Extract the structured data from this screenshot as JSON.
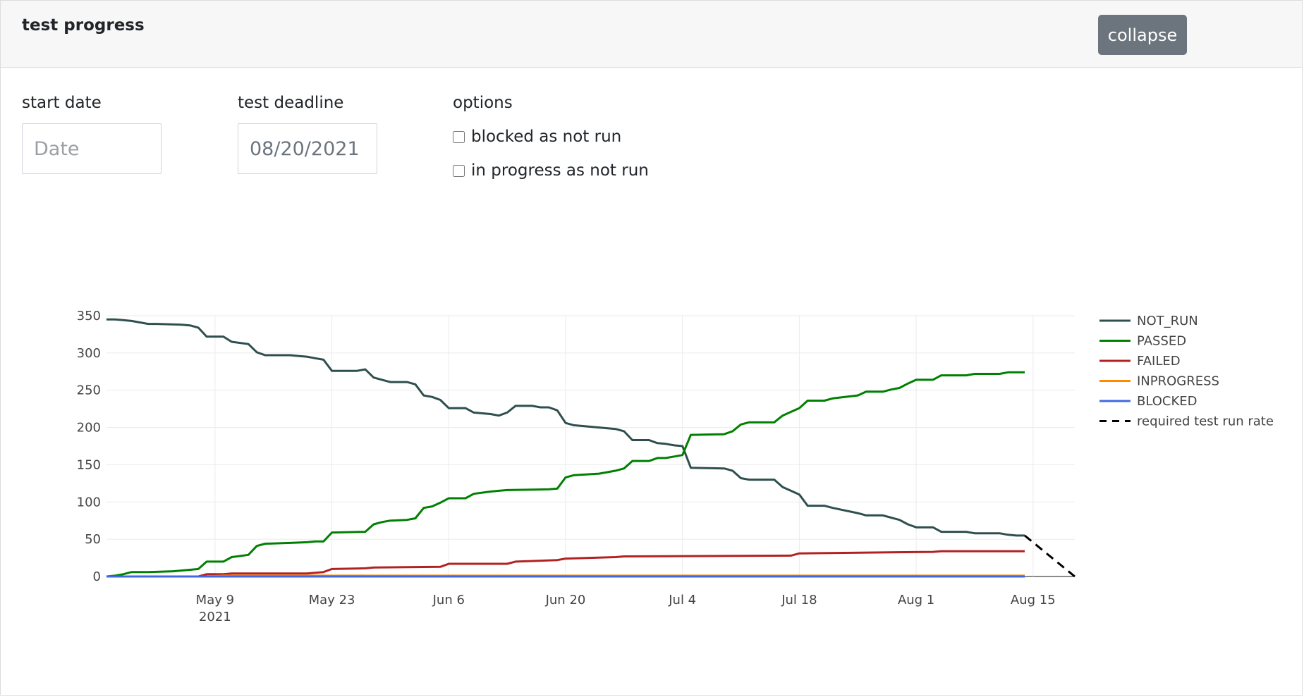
{
  "header": {
    "title": "test progress",
    "collapse_label": "collapse"
  },
  "form": {
    "start_date": {
      "label": "start date",
      "placeholder": "Date",
      "value": ""
    },
    "deadline": {
      "label": "test deadline",
      "value": "08/20/2021"
    },
    "options": {
      "label": "options",
      "items": [
        {
          "label": "blocked as not run",
          "checked": false
        },
        {
          "label": "in progress as not run",
          "checked": false
        }
      ]
    }
  },
  "chart_data": {
    "type": "line",
    "x_axis": {
      "type": "date",
      "range": [
        "2021-04-26",
        "2021-08-20"
      ],
      "ticks": [
        "May 9",
        "May 23",
        "Jun 6",
        "Jun 20",
        "Jul 4",
        "Jul 18",
        "Aug 1",
        "Aug 15"
      ],
      "tick_year": "2021"
    },
    "y_axis": {
      "range": [
        0,
        350
      ],
      "ticks": [
        "0",
        "50",
        "100",
        "150",
        "200",
        "250",
        "300",
        "350"
      ]
    },
    "grid": true,
    "legend": "right",
    "series": [
      {
        "name": "NOT_RUN",
        "color": "#2f4f4f",
        "dash": false,
        "points": [
          [
            "2021-04-26",
            345
          ],
          [
            "2021-04-27",
            345
          ],
          [
            "2021-04-28",
            344
          ],
          [
            "2021-04-29",
            343
          ],
          [
            "2021-04-30",
            341
          ],
          [
            "2021-05-01",
            339
          ],
          [
            "2021-05-02",
            339
          ],
          [
            "2021-05-05",
            338
          ],
          [
            "2021-05-06",
            337
          ],
          [
            "2021-05-07",
            334
          ],
          [
            "2021-05-08",
            322
          ],
          [
            "2021-05-10",
            322
          ],
          [
            "2021-05-11",
            315
          ],
          [
            "2021-05-13",
            312
          ],
          [
            "2021-05-14",
            301
          ],
          [
            "2021-05-15",
            297
          ],
          [
            "2021-05-18",
            297
          ],
          [
            "2021-05-19",
            296
          ],
          [
            "2021-05-20",
            295
          ],
          [
            "2021-05-21",
            293
          ],
          [
            "2021-05-22",
            291
          ],
          [
            "2021-05-23",
            276
          ],
          [
            "2021-05-26",
            276
          ],
          [
            "2021-05-27",
            278
          ],
          [
            "2021-05-28",
            267
          ],
          [
            "2021-05-29",
            264
          ],
          [
            "2021-05-30",
            261
          ],
          [
            "2021-06-01",
            261
          ],
          [
            "2021-06-02",
            258
          ],
          [
            "2021-06-03",
            243
          ],
          [
            "2021-06-04",
            241
          ],
          [
            "2021-06-05",
            237
          ],
          [
            "2021-06-06",
            226
          ],
          [
            "2021-06-08",
            226
          ],
          [
            "2021-06-09",
            220
          ],
          [
            "2021-06-11",
            218
          ],
          [
            "2021-06-12",
            216
          ],
          [
            "2021-06-13",
            220
          ],
          [
            "2021-06-14",
            229
          ],
          [
            "2021-06-16",
            229
          ],
          [
            "2021-06-17",
            227
          ],
          [
            "2021-06-18",
            227
          ],
          [
            "2021-06-19",
            223
          ],
          [
            "2021-06-20",
            206
          ],
          [
            "2021-06-21",
            203
          ],
          [
            "2021-06-26",
            198
          ],
          [
            "2021-06-27",
            195
          ],
          [
            "2021-06-28",
            183
          ],
          [
            "2021-06-30",
            183
          ],
          [
            "2021-07-01",
            179
          ],
          [
            "2021-07-02",
            178
          ],
          [
            "2021-07-03",
            176
          ],
          [
            "2021-07-04",
            175
          ],
          [
            "2021-07-05",
            146
          ],
          [
            "2021-07-09",
            145
          ],
          [
            "2021-07-10",
            142
          ],
          [
            "2021-07-11",
            132
          ],
          [
            "2021-07-12",
            130
          ],
          [
            "2021-07-15",
            130
          ],
          [
            "2021-07-16",
            120
          ],
          [
            "2021-07-17",
            115
          ],
          [
            "2021-07-18",
            110
          ],
          [
            "2021-07-19",
            95
          ],
          [
            "2021-07-21",
            95
          ],
          [
            "2021-07-22",
            92
          ],
          [
            "2021-07-25",
            85
          ],
          [
            "2021-07-26",
            82
          ],
          [
            "2021-07-28",
            82
          ],
          [
            "2021-07-29",
            79
          ],
          [
            "2021-07-30",
            76
          ],
          [
            "2021-07-31",
            70
          ],
          [
            "2021-08-01",
            66
          ],
          [
            "2021-08-03",
            66
          ],
          [
            "2021-08-04",
            60
          ],
          [
            "2021-08-07",
            60
          ],
          [
            "2021-08-08",
            58
          ],
          [
            "2021-08-11",
            58
          ],
          [
            "2021-08-12",
            56
          ],
          [
            "2021-08-13",
            55
          ],
          [
            "2021-08-14",
            55
          ]
        ]
      },
      {
        "name": "PASSED",
        "color": "#008000",
        "dash": false,
        "points": [
          [
            "2021-04-26",
            0
          ],
          [
            "2021-04-27",
            1
          ],
          [
            "2021-04-28",
            3
          ],
          [
            "2021-04-29",
            6
          ],
          [
            "2021-05-01",
            6
          ],
          [
            "2021-05-04",
            7
          ],
          [
            "2021-05-05",
            8
          ],
          [
            "2021-05-06",
            9
          ],
          [
            "2021-05-07",
            10
          ],
          [
            "2021-05-08",
            20
          ],
          [
            "2021-05-10",
            20
          ],
          [
            "2021-05-11",
            26
          ],
          [
            "2021-05-13",
            29
          ],
          [
            "2021-05-14",
            41
          ],
          [
            "2021-05-15",
            44
          ],
          [
            "2021-05-18",
            45
          ],
          [
            "2021-05-20",
            46
          ],
          [
            "2021-05-21",
            47
          ],
          [
            "2021-05-22",
            47
          ],
          [
            "2021-05-23",
            59
          ],
          [
            "2021-05-27",
            60
          ],
          [
            "2021-05-28",
            70
          ],
          [
            "2021-05-29",
            73
          ],
          [
            "2021-05-30",
            75
          ],
          [
            "2021-06-01",
            76
          ],
          [
            "2021-06-02",
            78
          ],
          [
            "2021-06-03",
            92
          ],
          [
            "2021-06-04",
            94
          ],
          [
            "2021-06-05",
            99
          ],
          [
            "2021-06-06",
            105
          ],
          [
            "2021-06-08",
            105
          ],
          [
            "2021-06-09",
            111
          ],
          [
            "2021-06-11",
            114
          ],
          [
            "2021-06-12",
            115
          ],
          [
            "2021-06-13",
            116
          ],
          [
            "2021-06-18",
            117
          ],
          [
            "2021-06-19",
            118
          ],
          [
            "2021-06-20",
            133
          ],
          [
            "2021-06-21",
            136
          ],
          [
            "2021-06-24",
            138
          ],
          [
            "2021-06-26",
            142
          ],
          [
            "2021-06-27",
            145
          ],
          [
            "2021-06-28",
            155
          ],
          [
            "2021-06-30",
            155
          ],
          [
            "2021-07-01",
            159
          ],
          [
            "2021-07-02",
            159
          ],
          [
            "2021-07-03",
            161
          ],
          [
            "2021-07-04",
            163
          ],
          [
            "2021-07-05",
            190
          ],
          [
            "2021-07-09",
            191
          ],
          [
            "2021-07-10",
            195
          ],
          [
            "2021-07-11",
            204
          ],
          [
            "2021-07-12",
            207
          ],
          [
            "2021-07-15",
            207
          ],
          [
            "2021-07-16",
            216
          ],
          [
            "2021-07-17",
            221
          ],
          [
            "2021-07-18",
            226
          ],
          [
            "2021-07-19",
            236
          ],
          [
            "2021-07-21",
            236
          ],
          [
            "2021-07-22",
            239
          ],
          [
            "2021-07-25",
            243
          ],
          [
            "2021-07-26",
            248
          ],
          [
            "2021-07-28",
            248
          ],
          [
            "2021-07-29",
            251
          ],
          [
            "2021-07-30",
            253
          ],
          [
            "2021-07-31",
            259
          ],
          [
            "2021-08-01",
            264
          ],
          [
            "2021-08-03",
            264
          ],
          [
            "2021-08-04",
            270
          ],
          [
            "2021-08-07",
            270
          ],
          [
            "2021-08-08",
            272
          ],
          [
            "2021-08-11",
            272
          ],
          [
            "2021-08-12",
            274
          ],
          [
            "2021-08-14",
            274
          ]
        ]
      },
      {
        "name": "FAILED",
        "color": "#b22222",
        "dash": false,
        "points": [
          [
            "2021-04-26",
            0
          ],
          [
            "2021-05-06",
            0
          ],
          [
            "2021-05-07",
            0
          ],
          [
            "2021-05-08",
            3
          ],
          [
            "2021-05-10",
            3
          ],
          [
            "2021-05-11",
            4
          ],
          [
            "2021-05-20",
            4
          ],
          [
            "2021-05-21",
            5
          ],
          [
            "2021-05-22",
            6
          ],
          [
            "2021-05-23",
            10
          ],
          [
            "2021-05-27",
            11
          ],
          [
            "2021-05-28",
            12
          ],
          [
            "2021-06-05",
            13
          ],
          [
            "2021-06-06",
            17
          ],
          [
            "2021-06-13",
            17
          ],
          [
            "2021-06-14",
            20
          ],
          [
            "2021-06-19",
            22
          ],
          [
            "2021-06-20",
            24
          ],
          [
            "2021-06-26",
            26
          ],
          [
            "2021-06-27",
            27
          ],
          [
            "2021-07-17",
            28
          ],
          [
            "2021-07-18",
            31
          ],
          [
            "2021-08-03",
            33
          ],
          [
            "2021-08-04",
            34
          ],
          [
            "2021-08-14",
            34
          ]
        ]
      },
      {
        "name": "INPROGRESS",
        "color": "#ff8c00",
        "dash": false,
        "points": [
          [
            "2021-04-26",
            0
          ],
          [
            "2021-05-08",
            0
          ],
          [
            "2021-05-10",
            1
          ],
          [
            "2021-08-14",
            1
          ]
        ]
      },
      {
        "name": "BLOCKED",
        "color": "#4169e1",
        "dash": false,
        "points": [
          [
            "2021-04-26",
            0
          ],
          [
            "2021-08-14",
            0
          ]
        ]
      },
      {
        "name": "required test run rate",
        "color": "#000000",
        "dash": true,
        "points": [
          [
            "2021-08-14",
            55
          ],
          [
            "2021-08-20",
            0
          ]
        ]
      }
    ]
  }
}
